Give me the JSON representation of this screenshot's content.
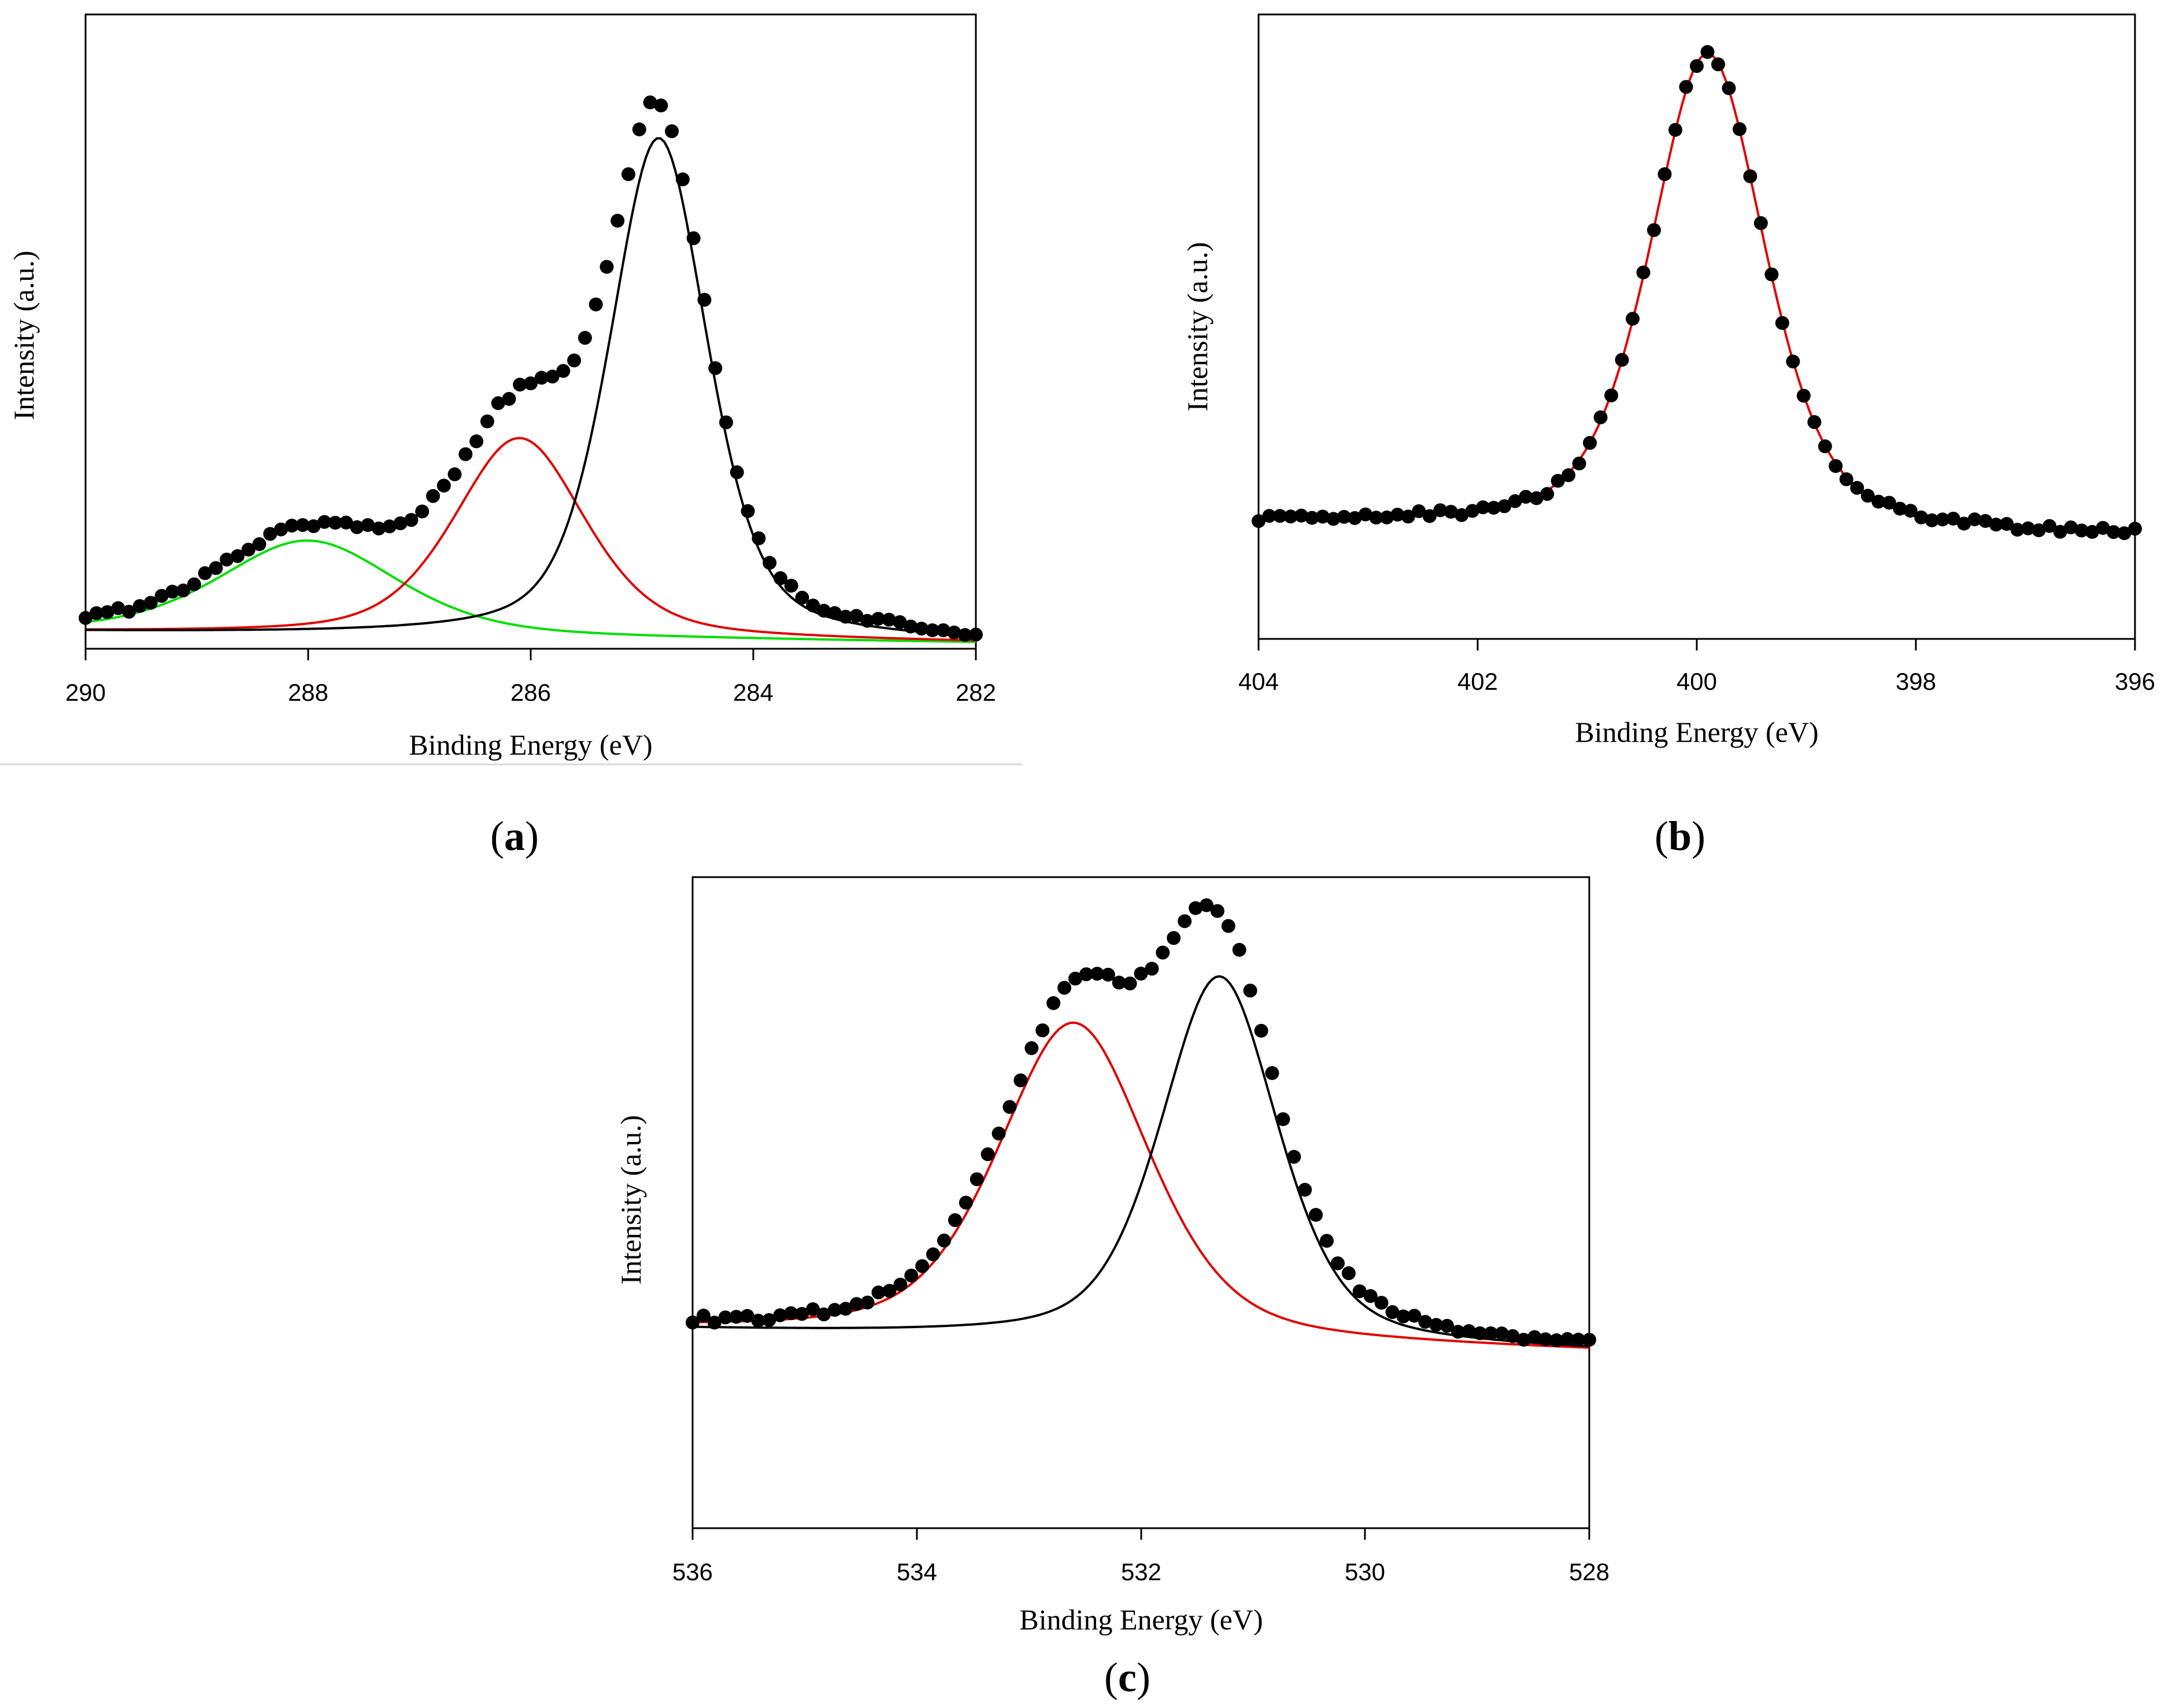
{
  "figure": {
    "separator_color": "#d9d9d9"
  },
  "chart_data": [
    {
      "id": "a",
      "type": "scatter",
      "panel_label": "a",
      "xlabel": "Binding Energy (eV)",
      "ylabel": "Intensity (a.u.)",
      "xlim": [
        290,
        282
      ],
      "ylim": [
        0,
        100
      ],
      "xticks": [
        290,
        288,
        286,
        284,
        282
      ],
      "xtick_labels": [
        "290",
        "288",
        "286",
        "284",
        "282"
      ],
      "grid": false,
      "markers": {
        "name": "measured",
        "color": "#000000"
      },
      "peaks": [
        {
          "name": "component-288",
          "color": "#00dd00",
          "center": 288.0,
          "height": 17.5,
          "width": 0.95
        },
        {
          "name": "component-286",
          "color": "#e00000",
          "center": 286.1,
          "height": 37.0,
          "width": 0.7
        },
        {
          "name": "component-284.8",
          "color": "#000000",
          "center": 284.85,
          "height": 93.0,
          "width": 0.52
        }
      ],
      "baseline": {
        "start": 2.0,
        "end": 0.0
      },
      "dots_extra": []
    },
    {
      "id": "b",
      "type": "scatter",
      "panel_label": "b",
      "xlabel": "Binding Energy (eV)",
      "ylabel": "Intensity (a.u.)",
      "xlim": [
        404,
        396
      ],
      "ylim": [
        0,
        100
      ],
      "xticks": [
        404,
        402,
        400,
        398,
        396
      ],
      "xtick_labels": [
        "404",
        "402",
        "400",
        "398",
        "396"
      ],
      "grid": false,
      "markers": {
        "name": "measured",
        "color": "#000000"
      },
      "peaks": [
        {
          "name": "component-399.9",
          "color": "#e00000",
          "center": 399.9,
          "height": 84.0,
          "width": 0.62
        }
      ],
      "baseline": {
        "start": 15.5,
        "end": 13.0
      },
      "dots_extra": []
    },
    {
      "id": "c",
      "type": "scatter",
      "panel_label": "c",
      "xlabel": "Binding Energy (eV)",
      "ylabel": "Intensity (a.u.)",
      "xlim": [
        536,
        528
      ],
      "ylim": [
        0,
        100
      ],
      "xticks": [
        536,
        534,
        532,
        530,
        528
      ],
      "xtick_labels": [
        "536",
        "534",
        "532",
        "530",
        "528"
      ],
      "grid": false,
      "markers": {
        "name": "measured",
        "color": "#000000"
      },
      "peaks": [
        {
          "name": "component-532.6",
          "color": "#e00000",
          "center": 532.6,
          "height": 57.0,
          "width": 0.8
        },
        {
          "name": "component-531.3",
          "color": "#000000",
          "center": 531.3,
          "height": 66.0,
          "width": 0.62
        }
      ],
      "baseline": {
        "start": 24.0,
        "end": 20.0
      },
      "dots_extra": []
    }
  ]
}
